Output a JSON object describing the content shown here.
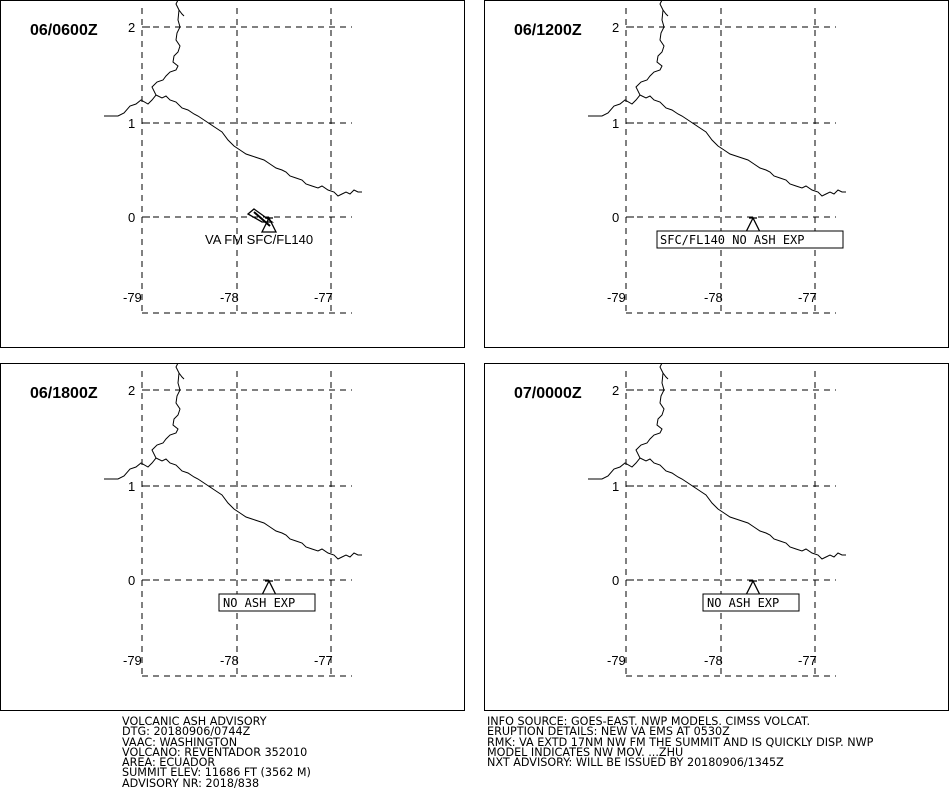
{
  "panels": [
    {
      "time": "06/0600Z",
      "label": "VA FM SFC/FL140",
      "label_boxed": false,
      "ash_area": true
    },
    {
      "time": "06/1200Z",
      "label": "SFC/FL140 NO ASH EXP",
      "label_boxed": true,
      "ash_area": false
    },
    {
      "time": "06/1800Z",
      "label": "NO ASH EXP",
      "label_boxed": true,
      "ash_area": false
    },
    {
      "time": "07/0000Z",
      "label": "NO ASH EXP",
      "label_boxed": true,
      "ash_area": false
    }
  ],
  "grid": {
    "lat_labels": [
      "2",
      "1",
      "0"
    ],
    "lon_labels": [
      "-79",
      "-78",
      "-77"
    ]
  },
  "advisory_left": [
    "VOLCANIC ASH ADVISORY",
    "DTG: 20180906/0744Z",
    "VAAC: WASHINGTON",
    "VOLCANO: REVENTADOR 352010",
    "AREA: ECUADOR",
    "SUMMIT ELEV: 11686 FT (3562 M)",
    "ADVISORY NR: 2018/838"
  ],
  "advisory_right": [
    "INFO SOURCE: GOES-EAST. NWP MODELS. CIMSS VOLCAT.",
    "ERUPTION DETAILS: NEW VA EMS AT 0530Z",
    "RMK: VA EXTD 17NM NW FM THE SUMMIT AND IS QUICKLY DISP. NWP",
    "MODEL INDICATES NW MOV. ...ZHU",
    "NXT ADVISORY: WILL BE ISSUED BY 20180906/1345Z"
  ],
  "icons": {
    "volcano": "triangle-volcano-icon"
  }
}
